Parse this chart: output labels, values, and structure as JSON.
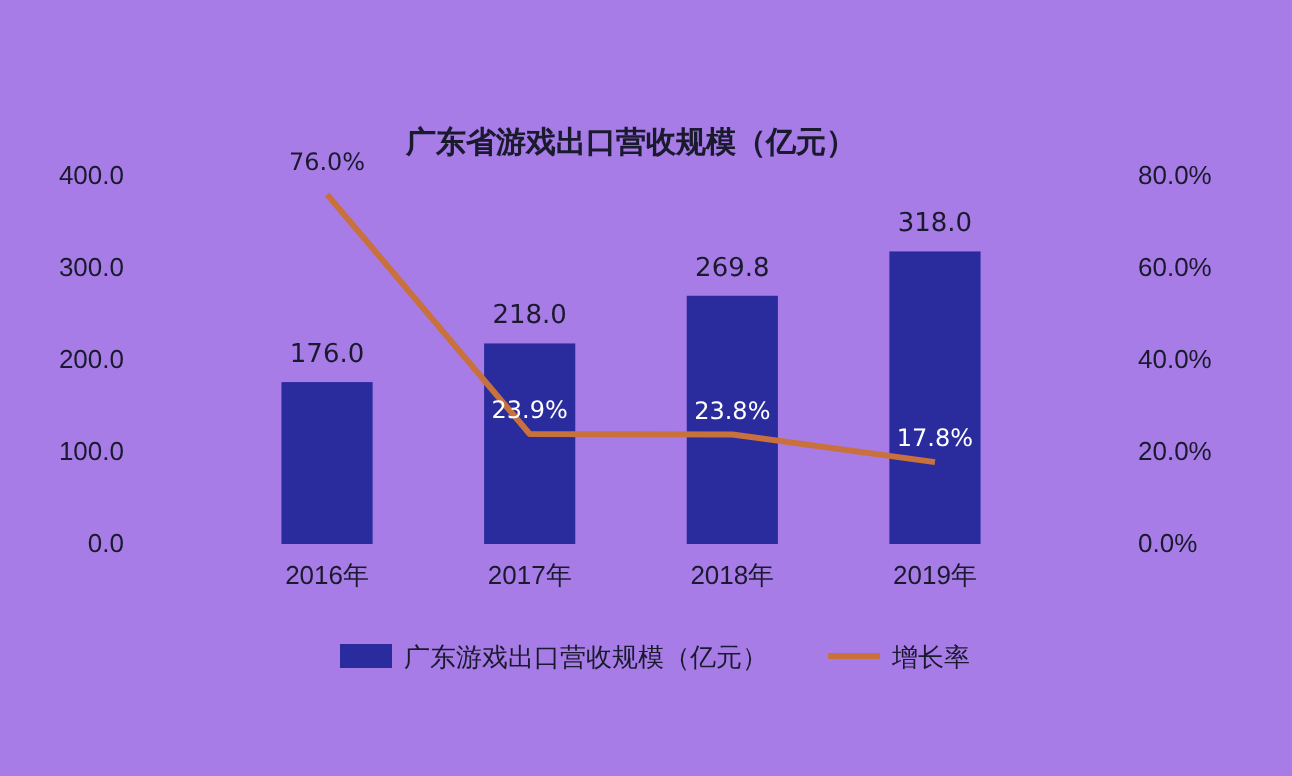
{
  "chart_data": {
    "type": "bar",
    "title": "广东省游戏出口营收规模（亿元）",
    "categories": [
      "2016年",
      "2017年",
      "2018年",
      "2019年"
    ],
    "series": [
      {
        "name": "广东游戏出口营收规模（亿元）",
        "color": "#2a2c9e",
        "values": [
          176.0,
          218.0,
          269.8,
          318.0
        ],
        "value_labels": [
          "176.0",
          "218.0",
          "269.8",
          "318.0"
        ]
      },
      {
        "name": "增长率",
        "type": "line",
        "axis": "y2",
        "color": "#c9713c",
        "values": [
          76.0,
          23.9,
          23.8,
          17.8
        ],
        "value_labels": [
          "76.0%",
          "23.9%",
          "23.8%",
          "17.8%"
        ]
      }
    ],
    "ylim": [
      0,
      400
    ],
    "yticks": [
      {
        "value": 0,
        "label": "0.0"
      },
      {
        "value": 100,
        "label": "100.0"
      },
      {
        "value": 200,
        "label": "200.0"
      },
      {
        "value": 300,
        "label": "300.0"
      },
      {
        "value": 400,
        "label": "400.0"
      }
    ],
    "y2lim": [
      0,
      80
    ],
    "y2ticks": [
      {
        "value": 0,
        "label": "0.0%"
      },
      {
        "value": 20,
        "label": "20.0%"
      },
      {
        "value": 40,
        "label": "40.0%"
      },
      {
        "value": 60,
        "label": "60.0%"
      },
      {
        "value": 80,
        "label": "80.0%"
      }
    ],
    "legend": "bottom",
    "marker": "none",
    "line_style": "solid"
  }
}
